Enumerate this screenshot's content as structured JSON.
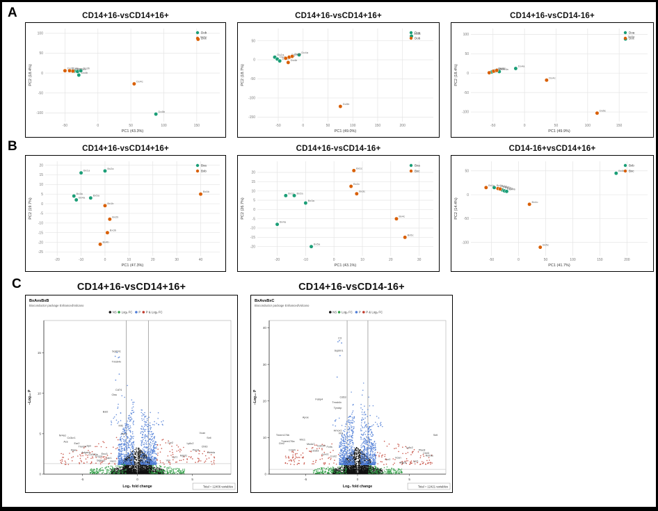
{
  "figure": {
    "panel_labels": [
      "A",
      "B",
      "C"
    ]
  },
  "palette": {
    "group_green": "#1b9e77",
    "group_orange": "#d95f02",
    "ns_black": "#111111",
    "fc_green": "#2f9e44",
    "p_blue": "#4d7cd6",
    "pfc_red": "#c0392b"
  },
  "chart_data": [
    {
      "type": "scatter",
      "panel": "A",
      "title": "CD14+16-vsCD14+16+",
      "xlabel": "PC1 (43.3%)",
      "ylabel": "PC2 (18.4%)",
      "xlim": [
        -80,
        185
      ],
      "ylim": [
        -122,
        112
      ],
      "xticks": [
        -50,
        0,
        50,
        100,
        150
      ],
      "yticks": [
        -100,
        -50,
        0,
        50,
        100
      ],
      "series": [
        {
          "name": "Dob",
          "color": "#1b9e77",
          "points": [
            [
              -36,
              5,
              "Do1b"
            ],
            [
              -31,
              4,
              "Do2b"
            ],
            [
              -26,
              6,
              "Do3b"
            ],
            [
              -29,
              -5,
              "Do4b"
            ],
            [
              88,
              -103,
              "Do5b"
            ]
          ]
        },
        {
          "name": "Doc",
          "color": "#d95f02",
          "points": [
            [
              -50,
              6,
              "Do1c"
            ],
            [
              -43,
              6,
              "Do2c"
            ],
            [
              -38,
              5,
              "Do3c"
            ],
            [
              55,
              -27,
              "Do4c"
            ],
            [
              152,
              85,
              "Do5c"
            ]
          ]
        }
      ]
    },
    {
      "type": "scatter",
      "panel": "A",
      "title": "CD14+16-vsCD14+16+",
      "xlabel": "PC1 (49.0%)",
      "ylabel": "PC2 (18.7%)",
      "xlim": [
        -92,
        262
      ],
      "ylim": [
        -162,
        82
      ],
      "xticks": [
        -50,
        0,
        50,
        100,
        150,
        200
      ],
      "yticks": [
        -150,
        -100,
        -50,
        0,
        50
      ],
      "series": [
        {
          "name": "Doa",
          "color": "#1b9e77",
          "points": [
            [
              -57,
              7,
              "Do1a"
            ],
            [
              -52,
              2,
              "Do2a"
            ],
            [
              -47,
              -3,
              "Do3a"
            ],
            [
              -8,
              13,
              "Do4a"
            ],
            [
              218,
              62,
              "Do5a"
            ]
          ]
        },
        {
          "name": "Dob",
          "color": "#d95f02",
          "points": [
            [
              -35,
              4,
              "Do1b"
            ],
            [
              -28,
              7,
              "Do2b"
            ],
            [
              -22,
              9,
              "Do3b"
            ],
            [
              -30,
              -7,
              "Do4b"
            ],
            [
              75,
              -122,
              "Do5b"
            ]
          ]
        }
      ]
    },
    {
      "type": "scatter",
      "panel": "A",
      "title": "CD14+16-vsCD14-16+",
      "xlabel": "PC1 (49.9%)",
      "ylabel": "PC2 (18.4%)",
      "xlim": [
        -85,
        195
      ],
      "ylim": [
        -125,
        115
      ],
      "xticks": [
        -50,
        0,
        50,
        100,
        150
      ],
      "yticks": [
        -100,
        -50,
        0,
        50,
        100
      ],
      "series": [
        {
          "name": "Doa",
          "color": "#1b9e77",
          "points": [
            [
              -52,
              3,
              "Do1a"
            ],
            [
              -46,
              6,
              "Do2a"
            ],
            [
              -40,
              4,
              "Do3a"
            ],
            [
              -14,
              12,
              "Do4a"
            ],
            [
              160,
              88,
              "Do5a"
            ]
          ]
        },
        {
          "name": "Doc",
          "color": "#d95f02",
          "points": [
            [
              -56,
              1,
              "Do1c"
            ],
            [
              -49,
              5,
              "Do2c"
            ],
            [
              -44,
              7,
              "Do3c"
            ],
            [
              35,
              -18,
              "Do4c"
            ],
            [
              115,
              -103,
              "Do5c"
            ]
          ]
        }
      ]
    },
    {
      "type": "scatter",
      "panel": "B",
      "title": "CD14+16-vsCD14+16+",
      "xlabel": "PC1 (47.3%)",
      "ylabel": "PC2 (19.7%)",
      "xlim": [
        -25,
        48
      ],
      "ylim": [
        -27,
        22
      ],
      "xticks": [
        -20,
        -10,
        0,
        10,
        20,
        30,
        40
      ],
      "yticks": [
        -25,
        -20,
        -15,
        -10,
        -5,
        0,
        5,
        10,
        15,
        20
      ],
      "series": [
        {
          "name": "Bxa",
          "color": "#1b9e77",
          "points": [
            [
              -10,
              16,
              "Bx1a"
            ],
            [
              0,
              17,
              "Bx2a"
            ],
            [
              -13,
              4,
              "Bx3a"
            ],
            [
              -12,
              2,
              "Bx4a"
            ],
            [
              -6,
              3,
              "Bx5a"
            ]
          ]
        },
        {
          "name": "Bxb",
          "color": "#d95f02",
          "points": [
            [
              0,
              -1,
              "Bx1b"
            ],
            [
              2,
              -8,
              "Bx2b"
            ],
            [
              1,
              -15,
              "Bx3b"
            ],
            [
              -2,
              -21,
              "Bx4b"
            ],
            [
              40,
              5,
              "Bx5b"
            ]
          ]
        }
      ]
    },
    {
      "type": "scatter",
      "panel": "B",
      "title": "CD14+16-vsCD14-16+",
      "xlabel": "PC1 (43.1%)",
      "ylabel": "PC2 (26.7%)",
      "xlim": [
        -27,
        35
      ],
      "ylim": [
        -25,
        26
      ],
      "xticks": [
        -20,
        -10,
        0,
        10,
        20,
        30
      ],
      "yticks": [
        -20,
        -15,
        -10,
        -5,
        0,
        5,
        10,
        15,
        20
      ],
      "series": [
        {
          "name": "Bxa",
          "color": "#1b9e77",
          "points": [
            [
              -17,
              7.5,
              "Bx1a"
            ],
            [
              -14,
              7.5,
              "Bx2a"
            ],
            [
              -10,
              3.5,
              "Bx3a"
            ],
            [
              -20,
              -8,
              "Bx4a"
            ],
            [
              -8,
              -20,
              "Bx5a"
            ]
          ]
        },
        {
          "name": "Bxc",
          "color": "#d95f02",
          "points": [
            [
              7,
              21,
              "Bx1c"
            ],
            [
              6,
              12.5,
              "Bx2c"
            ],
            [
              8,
              8.5,
              "Bx3c"
            ],
            [
              22,
              -5,
              "Bx4c"
            ],
            [
              25,
              -15,
              "Bx5c"
            ]
          ]
        }
      ]
    },
    {
      "type": "scatter",
      "panel": "B",
      "title": "CD14-16+vsCD14+16+",
      "xlabel": "PC1 (41.7%)",
      "ylabel": "PC2 (14.4%)",
      "xlim": [
        -88,
        238
      ],
      "ylim": [
        -128,
        70
      ],
      "xticks": [
        -50,
        0,
        50,
        100,
        150,
        200
      ],
      "yticks": [
        -100,
        -50,
        0,
        50
      ],
      "series": [
        {
          "name": "Bxb",
          "color": "#1b9e77",
          "points": [
            [
              -45,
              15,
              "Bx1b"
            ],
            [
              -30,
              10,
              "Bx2b"
            ],
            [
              -26,
              8,
              "Bx3b"
            ],
            [
              -22,
              7,
              "Bx4b"
            ],
            [
              180,
              45,
              "Bx5b"
            ]
          ]
        },
        {
          "name": "Bxc",
          "color": "#d95f02",
          "points": [
            [
              -60,
              15,
              "Bx1c"
            ],
            [
              -38,
              13,
              "Bx2c"
            ],
            [
              -34,
              12,
              "Bx3c"
            ],
            [
              20,
              -20,
              "Bx4c"
            ],
            [
              40,
              -110,
              "Bx5c"
            ]
          ]
        }
      ]
    },
    {
      "type": "volcano",
      "panel": "C",
      "title": "CD14+16-vsCD14+16+",
      "header": "BxAvsBxB",
      "subtitle": "Bioconductor package EnhancedVolcano",
      "legend": [
        {
          "label": "NS",
          "color": "#111111"
        },
        {
          "label": "Log₂ FC",
          "color": "#2f9e44"
        },
        {
          "label": "P",
          "color": "#4d7cd6"
        },
        {
          "label": "P & Log₂ FC",
          "color": "#c0392b"
        }
      ],
      "xlabel": "Log₂ fold change",
      "ylabel": "−Log₁₀ P",
      "caption": "Total = 12406 variables",
      "xlim": [
        -8.5,
        8.5
      ],
      "ylim": [
        0,
        19
      ],
      "xticks": [
        -5,
        0,
        5
      ],
      "yticks": [
        0,
        5,
        10,
        15
      ],
      "vlines": [
        -1,
        1
      ],
      "hline": 1.3,
      "clouds": [
        {
          "color": "#111111",
          "n": 2200,
          "x": [
            0.04,
            1.3
          ],
          "y0": 0.05,
          "ymax": 3.4,
          "exp": 2.6,
          "r": 0.7,
          "fall": 0.5
        },
        {
          "color": "#111111",
          "n": 420,
          "x": [
            1.3,
            2.4
          ],
          "y0": 0.03,
          "ymax": 1.0,
          "exp": 2.0,
          "r": 0.7,
          "fall": 0.4
        },
        {
          "color": "#4d7cd6",
          "n": 950,
          "x": [
            0.3,
            1.75
          ],
          "y0": 1.2,
          "ymax": 9.0,
          "exp": 2.3,
          "r": 0.8,
          "fall": 0.55
        },
        {
          "color": "#4d7cd6",
          "n": 40,
          "x": [
            0.4,
            2.4
          ],
          "y0": 6.0,
          "ymax": 13.0,
          "exp": 1.4,
          "r": 0.8,
          "fall": 0.5
        },
        {
          "color": "#4d7cd6",
          "n": 6,
          "x": [
            1.6,
            2.1
          ],
          "y0": 11,
          "ymax": 15.6,
          "exp": 1.0,
          "r": 0.9,
          "side": -1
        },
        {
          "color": "#2f9e44",
          "n": 300,
          "x": [
            1.05,
            4.3
          ],
          "y0": 0.05,
          "ymax": 1.3,
          "exp": 1.7,
          "r": 0.8,
          "fall": 0.5
        },
        {
          "color": "#c0392b",
          "n": 165,
          "x": [
            1.75,
            7.0
          ],
          "y0": 1.2,
          "ymax": 4.6,
          "exp": 1.5,
          "r": 0.8,
          "fall": 0.45
        }
      ],
      "labels": [
        [
          -1.9,
          15.1,
          "Sqstm1"
        ],
        [
          -1.9,
          13.8,
          "Tmsb4x"
        ],
        [
          -1.7,
          10.3,
          "Cd74"
        ],
        [
          -2.1,
          9.7,
          "Ctss"
        ],
        [
          -2.9,
          7.6,
          "Bst2"
        ],
        [
          -1.5,
          5.9,
          "Klf2"
        ],
        [
          -1.2,
          4.9,
          "Itga4"
        ],
        [
          -6.8,
          4.7,
          "Nr4a1"
        ],
        [
          -6.0,
          4.4,
          "Cx3cr1"
        ],
        [
          -6.5,
          3.9,
          "Ace"
        ],
        [
          -5.5,
          3.7,
          "Ear2"
        ],
        [
          -5.0,
          3.3,
          "Treml4"
        ],
        [
          -4.4,
          3.4,
          "Spn"
        ],
        [
          -5.8,
          2.9,
          "Itgax"
        ],
        [
          -4.7,
          2.6,
          "Adgre4"
        ],
        [
          -4.0,
          2.3,
          "Cd300e"
        ],
        [
          -3.5,
          2.1,
          "Fcgr4"
        ],
        [
          -3.0,
          2.4,
          "Eno3"
        ],
        [
          -2.6,
          1.9,
          "Lair1"
        ],
        [
          -3.3,
          1.6,
          "Siglece"
        ],
        [
          -2.2,
          1.5,
          "Hes1"
        ],
        [
          5.9,
          5.0,
          "Vcan"
        ],
        [
          6.5,
          4.4,
          "Sell"
        ],
        [
          4.8,
          3.7,
          "Ly6c2"
        ],
        [
          3.0,
          3.8,
          "Ccr2"
        ],
        [
          6.1,
          3.3,
          "Chil3"
        ],
        [
          5.3,
          2.9,
          "Plac8"
        ],
        [
          6.7,
          2.6,
          "Retnla"
        ],
        [
          4.2,
          2.2,
          "Mgst1"
        ],
        [
          3.4,
          2.0,
          "Lyz1"
        ],
        [
          2.8,
          1.6,
          "Vim"
        ]
      ]
    },
    {
      "type": "volcano",
      "panel": "C",
      "title": "CD14+16-vsCD14-16+",
      "header": "BxAvsBxC",
      "subtitle": "Bioconductor package EnhancedVolcano",
      "legend": [
        {
          "label": "NS",
          "color": "#111111"
        },
        {
          "label": "Log₂ FC",
          "color": "#2f9e44"
        },
        {
          "label": "P",
          "color": "#4d7cd6"
        },
        {
          "label": "P & Log₂ FC",
          "color": "#c0392b"
        }
      ],
      "xlabel": "Log₂ fold change",
      "ylabel": "−Log₁₀ P",
      "caption": "Total = 12421 variables",
      "xlim": [
        -8.5,
        8.5
      ],
      "ylim": [
        0,
        42
      ],
      "xticks": [
        -5,
        0,
        5
      ],
      "yticks": [
        0,
        10,
        20,
        30,
        40
      ],
      "vlines": [
        -1,
        1
      ],
      "hline": 1.3,
      "clouds": [
        {
          "color": "#111111",
          "n": 2200,
          "x": [
            0.04,
            1.3
          ],
          "y0": 0.1,
          "ymax": 7.5,
          "exp": 2.6,
          "r": 0.7,
          "fall": 0.5
        },
        {
          "color": "#111111",
          "n": 420,
          "x": [
            1.3,
            2.4
          ],
          "y0": 0.06,
          "ymax": 2.2,
          "exp": 2.0,
          "r": 0.7,
          "fall": 0.4
        },
        {
          "color": "#4d7cd6",
          "n": 950,
          "x": [
            0.3,
            1.75
          ],
          "y0": 2.6,
          "ymax": 20.0,
          "exp": 2.3,
          "r": 0.8,
          "fall": 0.55
        },
        {
          "color": "#4d7cd6",
          "n": 40,
          "x": [
            0.4,
            2.4
          ],
          "y0": 13.0,
          "ymax": 27.0,
          "exp": 1.4,
          "r": 0.8,
          "fall": 0.5
        },
        {
          "color": "#4d7cd6",
          "n": 5,
          "x": [
            1.5,
            2.1
          ],
          "y0": 26,
          "ymax": 37.5,
          "exp": 1.0,
          "r": 0.9,
          "side": -1
        },
        {
          "color": "#2f9e44",
          "n": 300,
          "x": [
            1.05,
            4.3
          ],
          "y0": 0.1,
          "ymax": 2.8,
          "exp": 1.7,
          "r": 0.8,
          "fall": 0.5
        },
        {
          "color": "#c0392b",
          "n": 170,
          "x": [
            1.75,
            7.2
          ],
          "y0": 2.6,
          "ymax": 10.0,
          "exp": 1.5,
          "r": 0.8,
          "fall": 0.45
        }
      ],
      "labels": [
        [
          -1.7,
          37.0,
          "C3"
        ],
        [
          -1.8,
          33.5,
          "Sqstm1"
        ],
        [
          -3.7,
          20.2,
          "Fabp4"
        ],
        [
          -1.4,
          20.8,
          "Cd63"
        ],
        [
          -2.0,
          19.4,
          "Tmsb4x"
        ],
        [
          -1.9,
          17.9,
          "Tyrobp"
        ],
        [
          -5.0,
          15.3,
          "Apoe"
        ],
        [
          -1.9,
          11.7,
          "Hmox1"
        ],
        [
          -1.6,
          10.9,
          "Ftl1"
        ],
        [
          -7.2,
          10.5,
          "Tmem176b"
        ],
        [
          -6.7,
          8.7,
          "Tmem176a"
        ],
        [
          -7.3,
          8.2,
          "Cbr2"
        ],
        [
          -5.3,
          9.2,
          "Mrc1"
        ],
        [
          -4.5,
          8.0,
          "Ms4a7"
        ],
        [
          -3.5,
          7.5,
          "Cd209f"
        ],
        [
          -2.7,
          7.2,
          "Fcrls"
        ],
        [
          -6.3,
          6.4,
          "Ccl24"
        ],
        [
          -4.1,
          6.2,
          "Cd163"
        ],
        [
          -3.1,
          5.2,
          "Lyve1"
        ],
        [
          -2.3,
          4.7,
          "Folr2"
        ],
        [
          7.5,
          10.5,
          "Sell"
        ],
        [
          5.0,
          7.0,
          "Ly6c2"
        ],
        [
          6.2,
          6.4,
          "Plac8"
        ],
        [
          6.6,
          5.5,
          "Chil3"
        ],
        [
          6.9,
          4.8,
          "Retnla"
        ],
        [
          3.9,
          4.3,
          "Vcan"
        ],
        [
          2.9,
          3.8,
          "Ccr2"
        ],
        [
          5.6,
          3.3,
          "Lyz1"
        ],
        [
          4.4,
          2.9,
          "Mgst1"
        ]
      ]
    }
  ]
}
